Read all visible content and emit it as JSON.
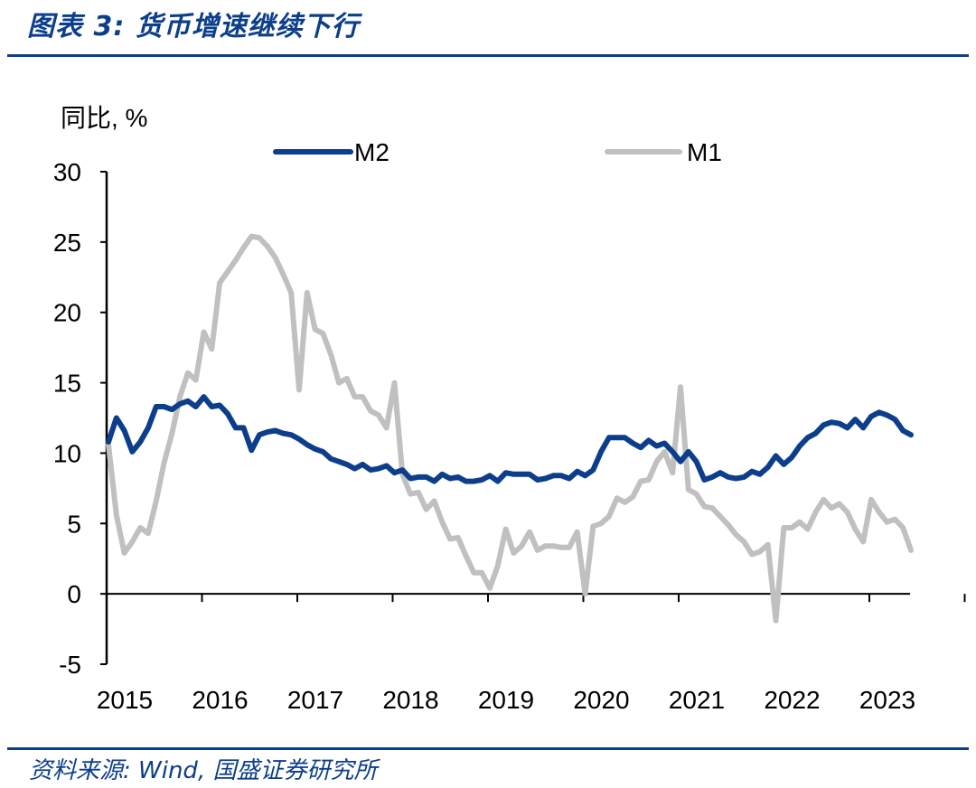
{
  "header": {
    "title": "图表 3:  货币增速继续下行"
  },
  "footer": {
    "source": "资料来源:  Wind, 国盛证券研究所"
  },
  "colors": {
    "brand": "#0c3e8c",
    "m2": "#0c3e8c",
    "m1": "#c0c0c0"
  },
  "chart_data": {
    "type": "line",
    "title": "",
    "ylabel": "同比, %",
    "xlabel": "",
    "ylim": [
      -5,
      30
    ],
    "yticks": [
      30,
      25,
      20,
      15,
      10,
      5,
      0,
      -5
    ],
    "xticks": [
      "2015",
      "2016",
      "2017",
      "2018",
      "2019",
      "2020",
      "2021",
      "2022",
      "2023"
    ],
    "legend": "top",
    "x_start": "2015-01",
    "series": [
      {
        "name": "M2",
        "values": [
          10.8,
          12.5,
          11.6,
          10.1,
          10.8,
          11.8,
          13.3,
          13.3,
          13.1,
          13.5,
          13.7,
          13.3,
          14.0,
          13.3,
          13.4,
          12.8,
          11.8,
          11.8,
          10.2,
          11.3,
          11.5,
          11.6,
          11.4,
          11.3,
          11.0,
          10.6,
          10.3,
          10.1,
          9.6,
          9.4,
          9.2,
          8.9,
          9.2,
          8.8,
          8.9,
          9.1,
          8.6,
          8.8,
          8.2,
          8.3,
          8.3,
          8.0,
          8.5,
          8.2,
          8.3,
          8.0,
          8.0,
          8.1,
          8.4,
          8.0,
          8.6,
          8.5,
          8.5,
          8.5,
          8.1,
          8.2,
          8.4,
          8.4,
          8.2,
          8.7,
          8.4,
          8.8,
          10.1,
          11.1,
          11.1,
          11.1,
          10.7,
          10.4,
          10.9,
          10.5,
          10.7,
          10.1,
          9.4,
          10.1,
          9.4,
          8.1,
          8.3,
          8.6,
          8.3,
          8.2,
          8.3,
          8.7,
          8.5,
          9.0,
          9.8,
          9.2,
          9.7,
          10.5,
          11.1,
          11.4,
          12.0,
          12.2,
          12.1,
          11.8,
          12.4,
          11.8,
          12.6,
          12.9,
          12.7,
          12.4,
          11.6,
          11.3
        ]
      },
      {
        "name": "M1",
        "values": [
          10.6,
          5.6,
          2.9,
          3.7,
          4.7,
          4.3,
          6.6,
          9.3,
          11.4,
          14.0,
          15.7,
          15.2,
          18.6,
          17.4,
          22.1,
          22.9,
          23.7,
          24.6,
          25.4,
          25.3,
          24.7,
          23.9,
          22.7,
          21.4,
          14.5,
          21.4,
          18.8,
          18.5,
          17.0,
          15.0,
          15.3,
          14.0,
          14.0,
          13.0,
          12.7,
          11.8,
          15.0,
          8.5,
          7.1,
          7.2,
          6.0,
          6.6,
          5.1,
          3.9,
          4.0,
          2.7,
          1.5,
          1.5,
          0.4,
          2.0,
          4.6,
          2.9,
          3.4,
          4.4,
          3.1,
          3.4,
          3.4,
          3.3,
          3.3,
          4.4,
          0.0,
          4.8,
          5.0,
          5.5,
          6.8,
          6.5,
          6.9,
          8.0,
          8.1,
          9.4,
          10.1,
          8.6,
          14.7,
          7.4,
          7.1,
          6.2,
          6.1,
          5.5,
          4.9,
          4.2,
          3.7,
          2.8,
          3.0,
          3.5,
          -1.9,
          4.7,
          4.7,
          5.1,
          4.6,
          5.8,
          6.7,
          6.1,
          6.4,
          5.8,
          4.6,
          3.7,
          6.7,
          5.8,
          5.1,
          5.3,
          4.7,
          3.1
        ]
      }
    ]
  }
}
